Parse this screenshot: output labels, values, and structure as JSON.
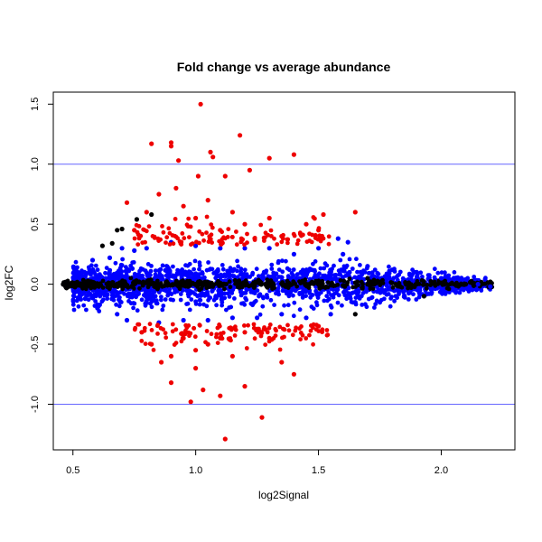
{
  "chart_data": {
    "type": "scatter",
    "title": "Fold change vs average abundance",
    "xlabel": "log2Signal",
    "ylabel": "log2FC",
    "xlim": [
      0.42,
      2.3
    ],
    "ylim": [
      -1.38,
      1.6
    ],
    "x_ticks": [
      0.5,
      1.0,
      1.5,
      2.0
    ],
    "x_tick_labels": [
      "0.5",
      "1.0",
      "1.5",
      "2.0"
    ],
    "y_ticks": [
      -1.0,
      -0.5,
      0.0,
      0.5,
      1.0,
      1.5
    ],
    "y_tick_labels": [
      "-1.0",
      "-0.5",
      "0.0",
      "0.5",
      "1.0",
      "1.5"
    ],
    "reference_lines": [
      {
        "axis": "y",
        "value": 1.0,
        "color": "#6666ff"
      },
      {
        "axis": "y",
        "value": -1.0,
        "color": "#6666ff"
      }
    ],
    "grid": false,
    "legend": "none",
    "colors": {
      "black": "#000000",
      "blue": "#0000ff",
      "red": "#ee0000"
    },
    "point_groups": [
      {
        "color": "black",
        "description_points": [
          [
            0.46,
            0.0
          ],
          [
            0.47,
            -0.02
          ],
          [
            0.5,
            0.01
          ],
          [
            0.55,
            0.02
          ],
          [
            0.6,
            -0.01
          ],
          [
            0.7,
            0.0
          ],
          [
            0.8,
            0.01
          ],
          [
            0.9,
            -0.01
          ],
          [
            1.0,
            0.0
          ],
          [
            1.1,
            0.01
          ],
          [
            1.2,
            -0.01
          ],
          [
            1.3,
            0.0
          ],
          [
            1.4,
            0.01
          ],
          [
            1.5,
            0.0
          ],
          [
            1.6,
            -0.01
          ],
          [
            1.7,
            0.0
          ],
          [
            1.8,
            0.01
          ],
          [
            1.9,
            0.0
          ],
          [
            2.0,
            0.01
          ],
          [
            2.1,
            0.0
          ],
          [
            2.2,
            -0.02
          ],
          [
            0.62,
            0.32
          ],
          [
            0.66,
            0.34
          ],
          [
            0.7,
            0.46
          ],
          [
            0.76,
            0.54
          ],
          [
            0.82,
            0.58
          ],
          [
            0.68,
            0.45
          ],
          [
            1.93,
            -0.1
          ],
          [
            2.12,
            0.02
          ],
          [
            2.2,
            0.02
          ],
          [
            1.65,
            -0.25
          ],
          [
            1.7,
            0.05
          ]
        ]
      },
      {
        "color": "blue",
        "points": [
          [
            0.52,
            0.1
          ],
          [
            0.55,
            -0.12
          ],
          [
            0.58,
            0.2
          ],
          [
            0.6,
            -0.2
          ],
          [
            0.65,
            0.22
          ],
          [
            0.68,
            -0.25
          ],
          [
            0.7,
            0.3
          ],
          [
            0.72,
            -0.3
          ],
          [
            0.75,
            0.28
          ],
          [
            0.8,
            0.3
          ],
          [
            0.85,
            -0.32
          ],
          [
            0.9,
            0.35
          ],
          [
            0.95,
            -0.3
          ],
          [
            1.0,
            0.32
          ],
          [
            1.05,
            -0.3
          ],
          [
            1.1,
            0.3
          ],
          [
            1.15,
            -0.28
          ],
          [
            1.2,
            0.3
          ],
          [
            1.25,
            -0.28
          ],
          [
            1.3,
            0.3
          ],
          [
            1.35,
            -0.25
          ],
          [
            1.4,
            0.25
          ],
          [
            1.45,
            -0.28
          ],
          [
            1.5,
            0.3
          ],
          [
            1.55,
            -0.25
          ],
          [
            1.6,
            0.25
          ],
          [
            1.65,
            -0.15
          ],
          [
            1.7,
            0.15
          ],
          [
            1.75,
            -0.15
          ],
          [
            1.8,
            0.12
          ],
          [
            1.85,
            -0.1
          ],
          [
            1.9,
            0.1
          ],
          [
            1.95,
            -0.08
          ],
          [
            2.0,
            0.05
          ],
          [
            2.05,
            -0.05
          ],
          [
            2.1,
            0.04
          ],
          [
            2.15,
            0.0
          ],
          [
            2.2,
            -0.02
          ],
          [
            1.58,
            0.38
          ],
          [
            1.62,
            0.35
          ]
        ]
      },
      {
        "color": "red",
        "points": [
          [
            1.02,
            1.5
          ],
          [
            1.18,
            1.24
          ],
          [
            0.82,
            1.17
          ],
          [
            0.9,
            1.18
          ],
          [
            0.9,
            1.15
          ],
          [
            1.4,
            1.08
          ],
          [
            1.06,
            1.1
          ],
          [
            1.12,
            0.9
          ],
          [
            0.93,
            1.03
          ],
          [
            1.07,
            1.06
          ],
          [
            1.22,
            0.95
          ],
          [
            1.3,
            1.05
          ],
          [
            0.8,
            0.6
          ],
          [
            0.85,
            0.75
          ],
          [
            0.95,
            0.65
          ],
          [
            1.0,
            0.55
          ],
          [
            1.05,
            0.7
          ],
          [
            1.1,
            0.45
          ],
          [
            1.15,
            0.6
          ],
          [
            1.2,
            0.5
          ],
          [
            1.3,
            0.55
          ],
          [
            1.35,
            0.4
          ],
          [
            1.45,
            0.5
          ],
          [
            1.5,
            0.45
          ],
          [
            1.65,
            0.6
          ],
          [
            1.52,
            0.58
          ],
          [
            0.75,
            0.45
          ],
          [
            0.72,
            0.68
          ],
          [
            1.01,
            0.9
          ],
          [
            0.92,
            0.8
          ],
          [
            0.78,
            -0.4
          ],
          [
            0.82,
            -0.5
          ],
          [
            0.9,
            -0.6
          ],
          [
            0.95,
            -0.45
          ],
          [
            1.0,
            -0.55
          ],
          [
            1.05,
            -0.5
          ],
          [
            1.1,
            -0.45
          ],
          [
            1.15,
            -0.6
          ],
          [
            1.2,
            -0.4
          ],
          [
            1.3,
            -0.45
          ],
          [
            1.35,
            -0.65
          ],
          [
            1.5,
            -0.35
          ],
          [
            0.86,
            -0.65
          ],
          [
            0.98,
            -0.98
          ],
          [
            1.03,
            -0.88
          ],
          [
            1.1,
            -0.93
          ],
          [
            1.12,
            -1.29
          ],
          [
            1.27,
            -1.11
          ],
          [
            1.4,
            -0.75
          ],
          [
            0.9,
            -0.82
          ],
          [
            1.2,
            -0.85
          ],
          [
            1.0,
            -0.7
          ]
        ]
      }
    ]
  }
}
